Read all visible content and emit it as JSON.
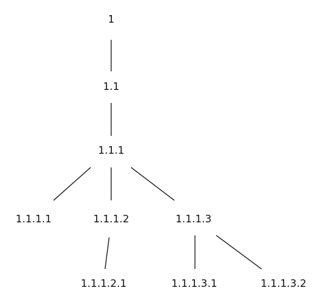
{
  "tree": {
    "nodes": [
      {
        "id": "1",
        "label": "1"
      },
      {
        "id": "1.1",
        "label": "1.1"
      },
      {
        "id": "1.1.1",
        "label": "1.1.1"
      },
      {
        "id": "1.1.1.1",
        "label": "1.1.1.1"
      },
      {
        "id": "1.1.1.2",
        "label": "1.1.1.2"
      },
      {
        "id": "1.1.1.3",
        "label": "1.1.1.3"
      },
      {
        "id": "1.1.1.2.1",
        "label": "1.1.1.2.1"
      },
      {
        "id": "1.1.1.3.1",
        "label": "1.1.1.3.1"
      },
      {
        "id": "1.1.1.3.2",
        "label": "1.1.1.3.2"
      }
    ],
    "edges": [
      {
        "from": "1",
        "to": "1.1"
      },
      {
        "from": "1.1",
        "to": "1.1.1"
      },
      {
        "from": "1.1.1",
        "to": "1.1.1.1"
      },
      {
        "from": "1.1.1",
        "to": "1.1.1.2"
      },
      {
        "from": "1.1.1",
        "to": "1.1.1.3"
      },
      {
        "from": "1.1.1.2",
        "to": "1.1.1.2.1"
      },
      {
        "from": "1.1.1.3",
        "to": "1.1.1.3.1"
      },
      {
        "from": "1.1.1.3",
        "to": "1.1.1.3.2"
      }
    ]
  }
}
